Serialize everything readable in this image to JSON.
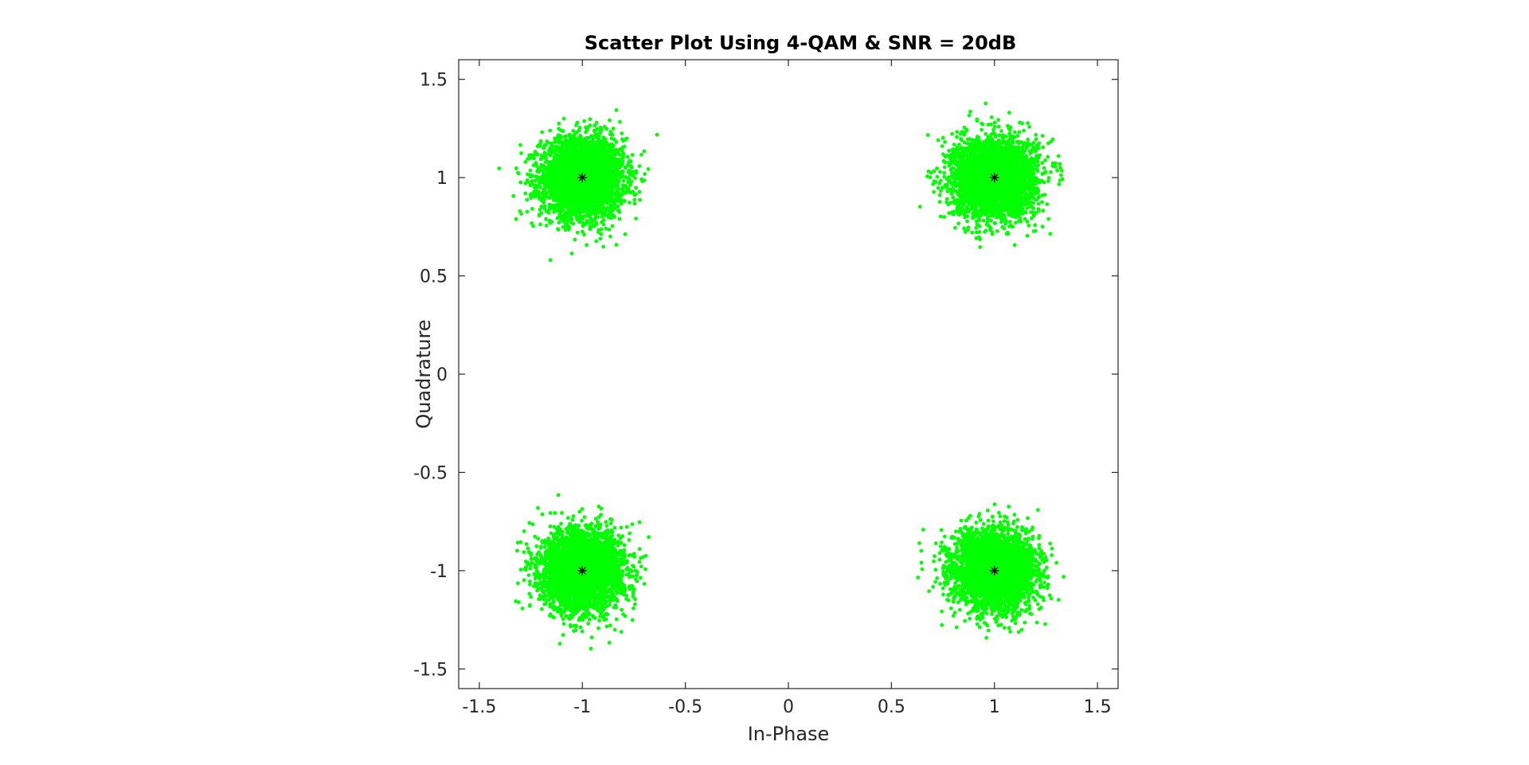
{
  "chart_data": {
    "type": "scatter",
    "title": "Scatter Plot Using 4-QAM & SNR = 20dB",
    "xlabel": "In-Phase",
    "ylabel": "Quadrature",
    "xlim": [
      -1.6,
      1.6
    ],
    "ylim": [
      -1.6,
      1.6
    ],
    "xticks": [
      -1.5,
      -1,
      -0.5,
      0,
      0.5,
      1,
      1.5
    ],
    "xtick_labels": [
      "-1.5",
      "-1",
      "-0.5",
      "0",
      "0.5",
      "1",
      "1.5"
    ],
    "yticks": [
      -1.5,
      -1,
      -0.5,
      0,
      0.5,
      1,
      1.5
    ],
    "ytick_labels": [
      "-1.5",
      "-1",
      "-0.5",
      "0",
      "0.5",
      "1",
      "1.5"
    ],
    "grid": false,
    "colors": {
      "received": "#00ff00",
      "reference": "#000000",
      "axes": "#262626"
    },
    "series": [
      {
        "role": "received symbols",
        "marker": "dot",
        "color": "#00ff00",
        "centers": [
          [
            -1,
            1
          ],
          [
            1,
            1
          ],
          [
            -1,
            -1
          ],
          [
            1,
            -1
          ]
        ],
        "spread_std": 0.1,
        "points_per_cluster": 3500
      },
      {
        "role": "ideal constellation",
        "marker": "asterisk",
        "color": "#000000",
        "x": [
          -1,
          1,
          -1,
          1
        ],
        "y": [
          1,
          1,
          -1,
          -1
        ]
      }
    ]
  }
}
